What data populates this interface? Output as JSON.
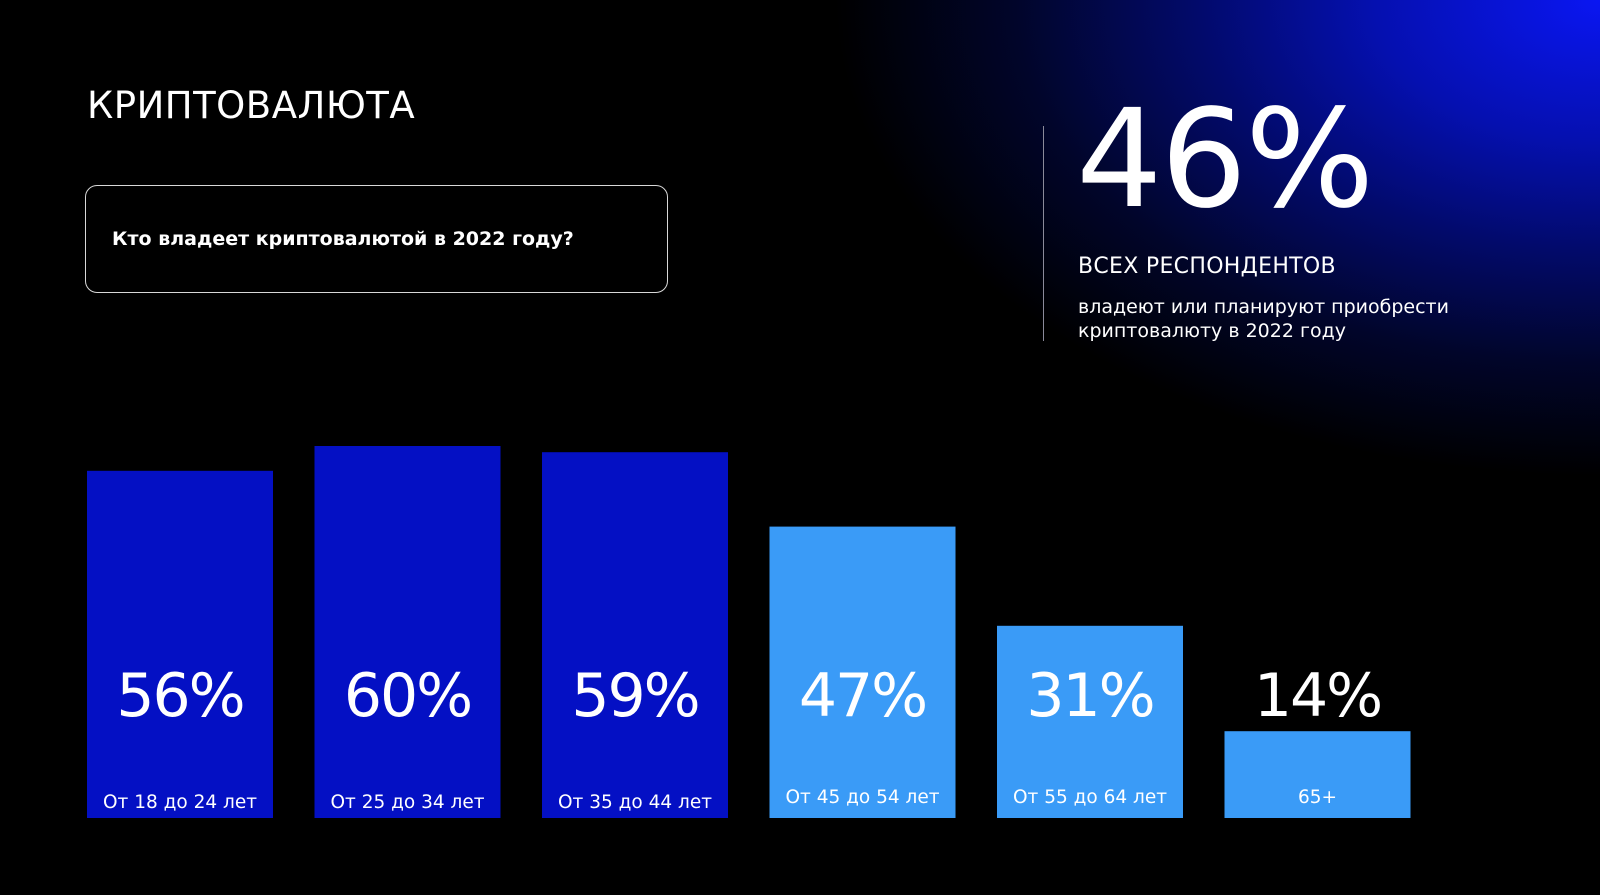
{
  "slide": {
    "title": "КРИПТОВАЛЮТА",
    "question": "Кто владеет криптовалютой в 2022 году?"
  },
  "summary": {
    "value": "46%",
    "label": "ВСЕХ РЕСПОНДЕНТОВ",
    "description": "владеют или планируют приобрести криптовалюту в 2022 году"
  },
  "colors": {
    "dark_bar": "#0410c4",
    "light_bar": "#3a9bf7",
    "background": "#000000"
  },
  "chart_data": {
    "type": "bar",
    "title": "",
    "xlabel": "",
    "ylabel": "",
    "ylim": [
      0,
      60
    ],
    "grid": false,
    "legend": "none",
    "categories": [
      "От 18 до 24 лет",
      "От 25 до 34 лет",
      "От 35 до 44 лет",
      "От 45 до 54 лет",
      "От 55 до 64 лет",
      "65+"
    ],
    "values": [
      56,
      60,
      59,
      47,
      31,
      14
    ],
    "value_labels": [
      "56%",
      "60%",
      "59%",
      "47%",
      "31%",
      "14%"
    ],
    "bar_colors": [
      "#0410c4",
      "#0410c4",
      "#0410c4",
      "#3a9bf7",
      "#3a9bf7",
      "#3a9bf7"
    ]
  }
}
